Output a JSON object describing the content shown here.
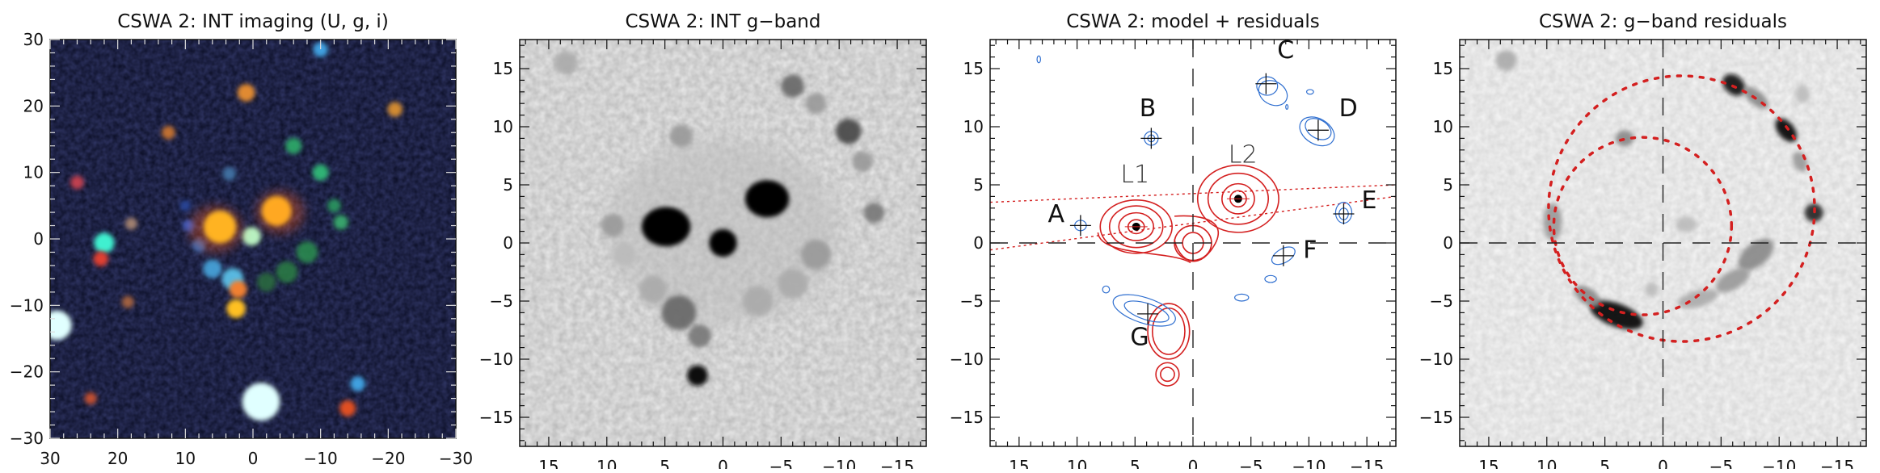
{
  "chart_data": [
    {
      "type": "image",
      "title": "CSWA 2: INT imaging (U, g, i)",
      "xlim": [
        30,
        -30
      ],
      "ylim": [
        -30,
        30
      ],
      "xticks": [
        "30",
        "20",
        "10",
        "0",
        "−10",
        "−20",
        "−30"
      ],
      "xtick_values": [
        30,
        20,
        10,
        0,
        -10,
        -20,
        -30
      ],
      "yticks": [
        "−30",
        "−20",
        "−10",
        "0",
        "10",
        "20",
        "30"
      ],
      "ytick_values": [
        -30,
        -20,
        -10,
        0,
        10,
        20,
        30
      ],
      "minor_step": 2,
      "colormap": "RGB composite (U, g, i)",
      "background": "#0a0d24"
    },
    {
      "type": "image",
      "title": "CSWA 2: INT g−band",
      "xlim": [
        17.5,
        -17.5
      ],
      "ylim": [
        -17.5,
        17.5
      ],
      "xticks": [
        "15",
        "10",
        "5",
        "0",
        "−5",
        "−10",
        "−15"
      ],
      "xtick_values": [
        15,
        10,
        5,
        0,
        -5,
        -10,
        -15
      ],
      "yticks": [
        "−15",
        "−10",
        "−5",
        "0",
        "5",
        "10",
        "15"
      ],
      "ytick_values": [
        -15,
        -10,
        -5,
        0,
        5,
        10,
        15
      ],
      "minor_step": 1,
      "colormap": "inverted grayscale"
    },
    {
      "type": "contour",
      "title": "CSWA 2: model + residuals",
      "xlim": [
        17.5,
        -17.5
      ],
      "ylim": [
        -17.5,
        17.5
      ],
      "xticks": [
        "15",
        "10",
        "5",
        "0",
        "−5",
        "−10",
        "−15"
      ],
      "xtick_values": [
        15,
        10,
        5,
        0,
        -5,
        -10,
        -15
      ],
      "yticks": [
        "−15",
        "−10",
        "−5",
        "0",
        "5",
        "10",
        "15"
      ],
      "ytick_values": [
        -15,
        -10,
        -5,
        0,
        5,
        10,
        15
      ],
      "minor_step": 1,
      "crosshair": true,
      "model_color": "#d42020",
      "residual_color": "#2f6fd0",
      "lenses": [
        {
          "label": "L1",
          "x": 4.9,
          "y": 1.4,
          "label_x": 5.0,
          "label_y": 5.2
        },
        {
          "label": "L2",
          "x": -3.9,
          "y": 3.8,
          "label_x": -4.3,
          "label_y": 6.9
        }
      ],
      "images": [
        {
          "label": "A",
          "x": 9.7,
          "y": 1.5,
          "label_x": 11.8,
          "label_y": 1.8
        },
        {
          "label": "B",
          "x": 3.6,
          "y": 9.0,
          "label_x": 3.9,
          "label_y": 10.9
        },
        {
          "label": "C",
          "x": -6.3,
          "y": 13.7,
          "label_x": -8.0,
          "label_y": 15.9
        },
        {
          "label": "D",
          "x": -10.8,
          "y": 9.7,
          "label_x": -13.4,
          "label_y": 10.9
        },
        {
          "label": "E",
          "x": -13.0,
          "y": 2.5,
          "label_x": -15.2,
          "label_y": 3.0
        },
        {
          "label": "F",
          "x": -7.8,
          "y": -1.1,
          "label_x": -10.1,
          "label_y": -1.3
        },
        {
          "label": "G",
          "x": 3.9,
          "y": -6.1,
          "label_x": 4.6,
          "label_y": -8.8
        }
      ]
    },
    {
      "type": "image",
      "title": "CSWA 2: g−band residuals",
      "xlim": [
        17.5,
        -17.5
      ],
      "ylim": [
        -17.5,
        17.5
      ],
      "xticks": [
        "15",
        "10",
        "5",
        "0",
        "−5",
        "−10",
        "−15"
      ],
      "xtick_values": [
        15,
        10,
        5,
        0,
        -5,
        -10,
        -15
      ],
      "yticks": [
        "−15",
        "−10",
        "−5",
        "0",
        "5",
        "10",
        "15"
      ],
      "ytick_values": [
        -15,
        -10,
        -5,
        0,
        5,
        10,
        15
      ],
      "minor_step": 1,
      "crosshair": true,
      "colormap": "inverted grayscale",
      "circles": [
        {
          "cx": -1.6,
          "cy": 2.95,
          "r": 11.45,
          "color": "#d42020",
          "style": "dotted"
        },
        {
          "cx": 1.75,
          "cy": 1.45,
          "r": 7.65,
          "color": "#d42020",
          "style": "dotted"
        }
      ]
    }
  ]
}
